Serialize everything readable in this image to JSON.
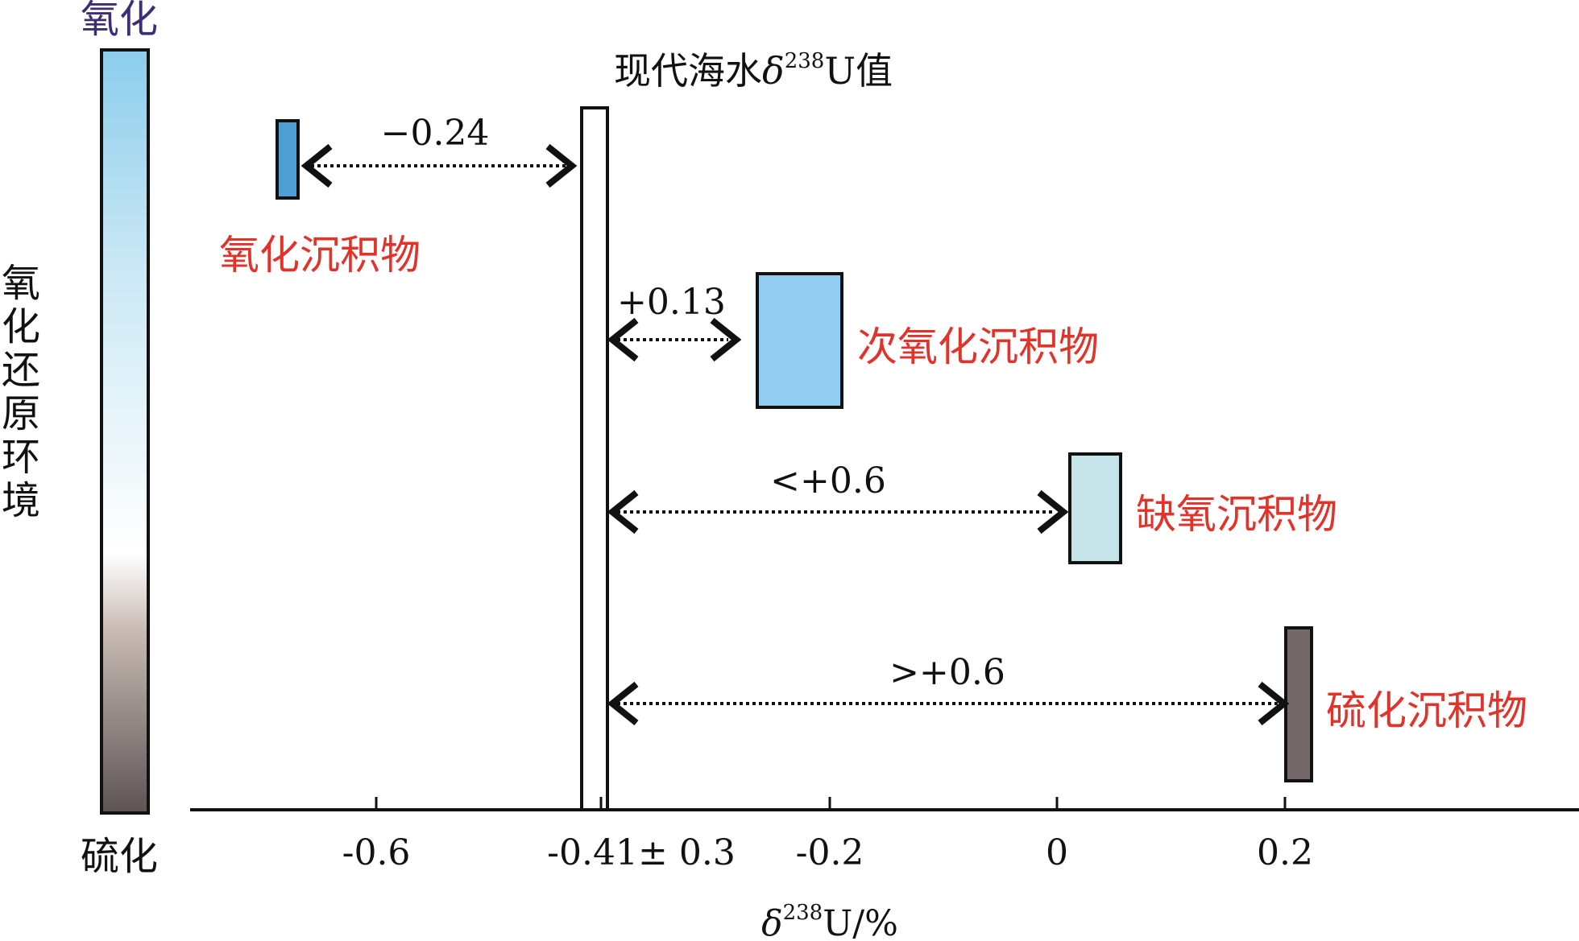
{
  "title": "现代海水δ²³⁸U值",
  "title_parts": {
    "pre": "现代海水",
    "delta": "δ",
    "sup": "238",
    "post": "U值"
  },
  "gradient_bar": {
    "top_label": "氧化",
    "bottom_label": "硫化",
    "side_label_chars": [
      "氧",
      "化",
      "还",
      "原",
      "环",
      "境"
    ],
    "colors": [
      "#8ccdec",
      "#cde9f5",
      "#ffffff",
      "#c9bcb4",
      "#5d5355"
    ]
  },
  "axis": {
    "label_delta": "δ",
    "label_sup": "238",
    "label_rest": "U/%",
    "ticks": [
      "-0.6",
      "-0.41± 0.3",
      "-0.2",
      "0",
      "0.2"
    ]
  },
  "seawater": {
    "value": -0.41,
    "uncertainty": "± 0.3"
  },
  "sediments": [
    {
      "name": "氧化沉积物",
      "offset": "−0.24",
      "color": "#4e9fd4"
    },
    {
      "name": "次氧化沉积物",
      "offset": "+0.13",
      "color": "#92cdef"
    },
    {
      "name": "缺氧沉积物",
      "offset": "<+0.6",
      "color": "#c7e3ea"
    },
    {
      "name": "硫化沉积物",
      "offset": ">+0.6",
      "color": "#75686b"
    }
  ]
}
